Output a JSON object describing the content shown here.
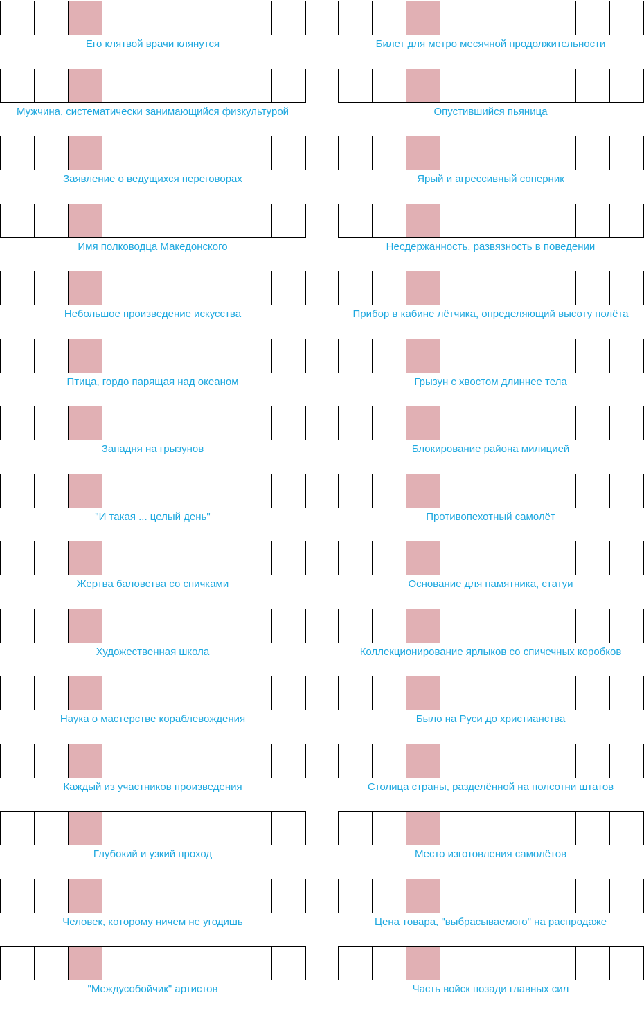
{
  "colors": {
    "accent": "#1ea8df",
    "highlight": "#e1b0b4",
    "border": "#000000"
  },
  "puzzle": {
    "cells_per_word": 9,
    "highlighted_cell_index": 2,
    "left_clues": [
      "Его клятвой врачи клянутся",
      "Мужчина, систематически занимающийся физкультурой",
      "Заявление о ведущихся переговорах",
      "Имя полководца Македонского",
      "Небольшое произведение искусства",
      "Птица, гордо парящая над океаном",
      "Западня на грызунов",
      "\"И такая ... целый день\"",
      "Жертва баловства со спичками",
      "Художественная школа",
      "Наука о мастерстве кораблевождения",
      "Каждый из участников произведения",
      "Глубокий и узкий проход",
      "Человек, которому ничем не угодишь",
      "\"Междусобойчик\" артистов"
    ],
    "right_clues": [
      "Билет для метро месячной продолжительности",
      "Опустившийся пьяница",
      "Ярый и агрессивный соперник",
      "Несдержанность, развязность в поведении",
      "Прибор в кабине лётчика, определяющий высоту полёта",
      "Грызун с хвостом длиннее тела",
      "Блокирование района милицией",
      "Противопехотный самолёт",
      "Основание для памятника, статуи",
      "Коллекционирование ярлыков со спичечных коробков",
      "Было на Руси до христианства",
      "Столица страны, разделённой на полсотни штатов",
      "Место изготовления самолётов",
      "Цена товара, \"выбрасываемого\" на распродаже",
      "Часть войск позади главных сил"
    ]
  }
}
